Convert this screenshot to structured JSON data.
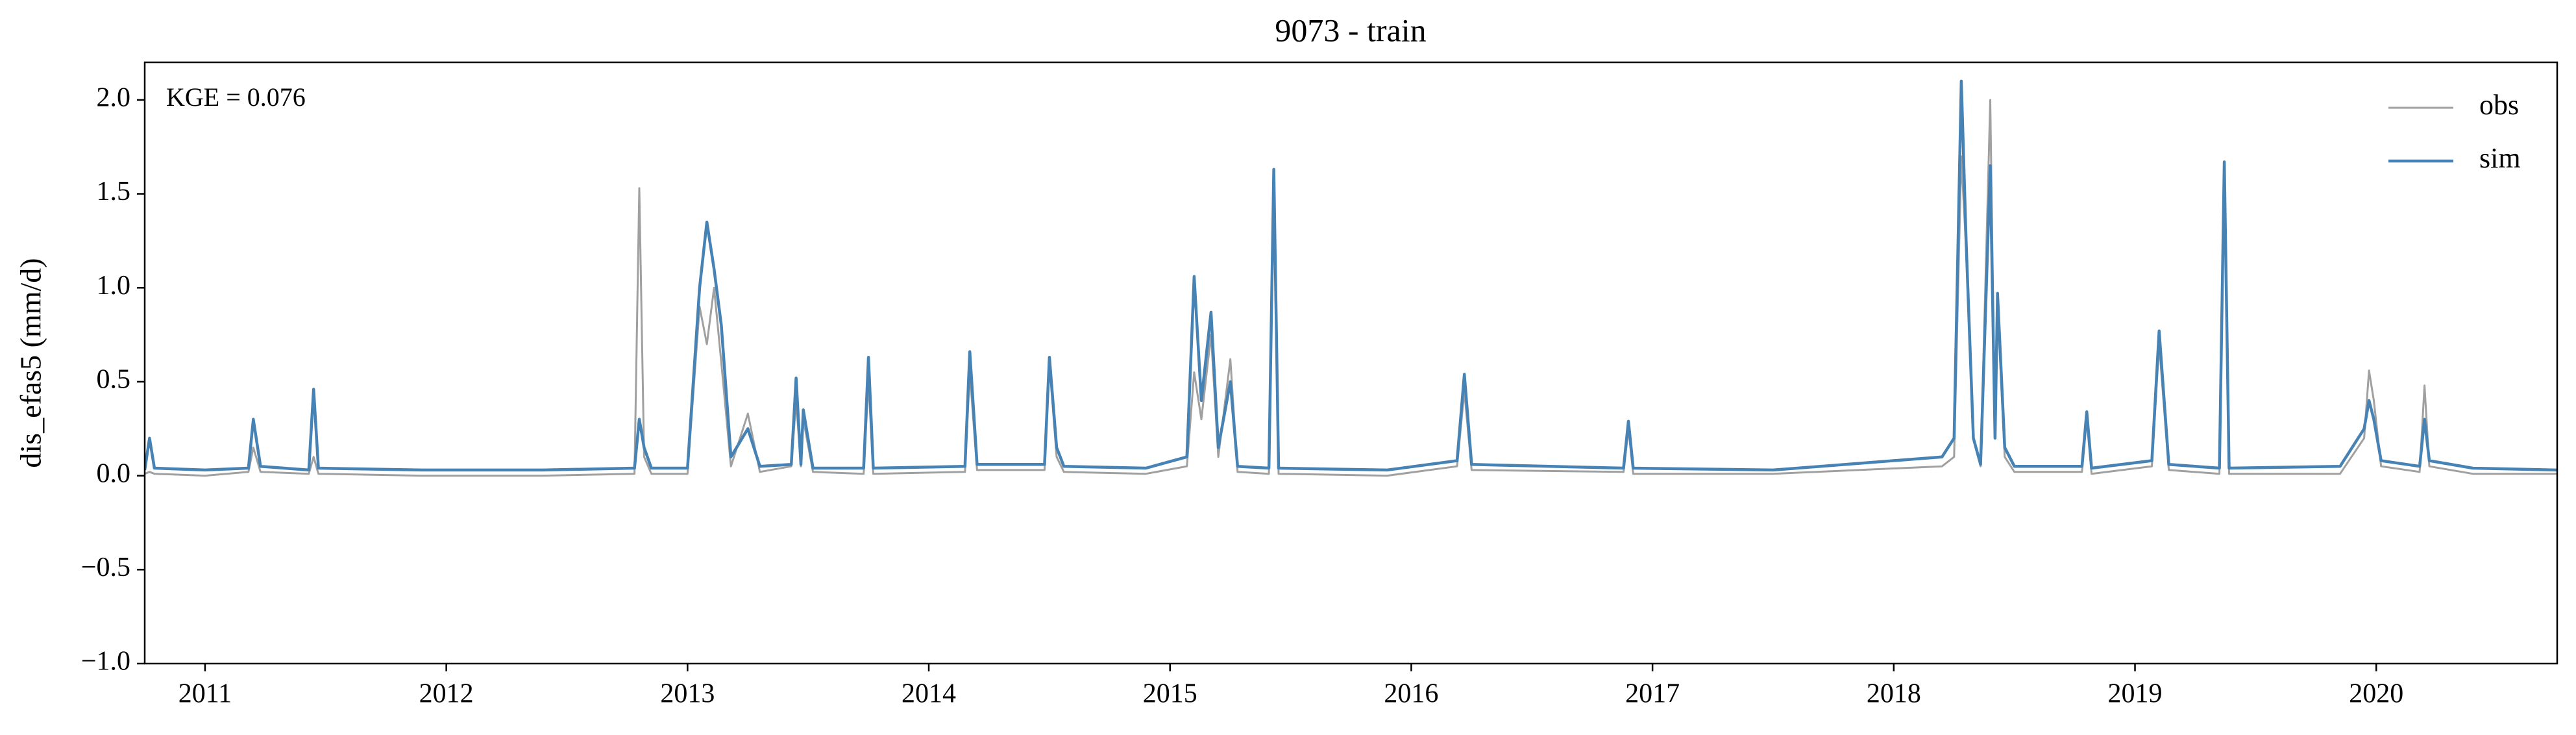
{
  "chart_data": {
    "type": "line",
    "title": "9073 - train",
    "ylabel": "dis_efas5 (mm/d)",
    "annotation": "KGE = 0.076",
    "legend": "upper right",
    "grid": false,
    "xlim": [
      2010.75,
      2020.75
    ],
    "xticks": [
      2011,
      2012,
      2013,
      2014,
      2015,
      2016,
      2017,
      2018,
      2019,
      2020
    ],
    "ylim": [
      -1,
      2.2
    ],
    "yticks": [
      {
        "value": -1,
        "label": "−1.0"
      },
      {
        "value": -0.5,
        "label": "−0.5"
      },
      {
        "value": 0,
        "label": "0.0"
      },
      0.5,
      {
        "value": 1,
        "label": "1.0"
      },
      1.5,
      {
        "value": 2,
        "label": "2.0"
      }
    ],
    "x": [
      2010.75,
      2010.77,
      2010.79,
      2011.0,
      2011.18,
      2011.2,
      2011.23,
      2011.43,
      2011.45,
      2011.47,
      2011.9,
      2012.4,
      2012.78,
      2012.8,
      2012.82,
      2012.85,
      2013.0,
      2013.05,
      2013.08,
      2013.11,
      2013.14,
      2013.18,
      2013.25,
      2013.3,
      2013.43,
      2013.45,
      2013.47,
      2013.48,
      2013.52,
      2013.73,
      2013.75,
      2013.77,
      2014.15,
      2014.17,
      2014.2,
      2014.48,
      2014.5,
      2014.53,
      2014.56,
      2014.9,
      2015.07,
      2015.1,
      2015.13,
      2015.17,
      2015.2,
      2015.25,
      2015.28,
      2015.41,
      2015.43,
      2015.45,
      2015.9,
      2016.19,
      2016.22,
      2016.25,
      2016.88,
      2016.9,
      2016.92,
      2017.5,
      2018.2,
      2018.25,
      2018.28,
      2018.3,
      2018.33,
      2018.36,
      2018.4,
      2018.42,
      2018.43,
      2018.46,
      2018.5,
      2018.78,
      2018.8,
      2018.82,
      2019.07,
      2019.1,
      2019.14,
      2019.35,
      2019.37,
      2019.39,
      2019.85,
      2019.95,
      2019.97,
      2019.99,
      2020.02,
      2020.18,
      2020.2,
      2020.22,
      2020.4,
      2020.75
    ],
    "series": [
      {
        "name": "obs",
        "color": "#a0a0a0",
        "values": [
          0.01,
          0.02,
          0.01,
          0.0,
          0.02,
          0.15,
          0.02,
          0.01,
          0.1,
          0.01,
          0.0,
          0.0,
          0.01,
          1.53,
          0.1,
          0.01,
          0.01,
          0.9,
          0.7,
          1.0,
          0.6,
          0.05,
          0.33,
          0.02,
          0.05,
          0.4,
          0.05,
          0.3,
          0.02,
          0.01,
          0.5,
          0.01,
          0.02,
          0.55,
          0.03,
          0.03,
          0.6,
          0.1,
          0.02,
          0.01,
          0.05,
          0.55,
          0.3,
          0.75,
          0.1,
          0.62,
          0.02,
          0.01,
          1.5,
          0.01,
          0.0,
          0.05,
          0.45,
          0.03,
          0.02,
          0.25,
          0.01,
          0.01,
          0.05,
          0.1,
          1.7,
          1.2,
          0.2,
          0.05,
          2.0,
          0.2,
          0.9,
          0.1,
          0.02,
          0.02,
          0.3,
          0.01,
          0.05,
          0.7,
          0.03,
          0.01,
          1.55,
          0.01,
          0.01,
          0.2,
          0.56,
          0.4,
          0.05,
          0.02,
          0.48,
          0.05,
          0.01,
          0.01
        ]
      },
      {
        "name": "sim",
        "color": "#4682b4",
        "values": [
          0.03,
          0.2,
          0.04,
          0.03,
          0.04,
          0.3,
          0.05,
          0.03,
          0.46,
          0.04,
          0.03,
          0.03,
          0.04,
          0.3,
          0.15,
          0.04,
          0.04,
          1.0,
          1.35,
          1.1,
          0.8,
          0.1,
          0.25,
          0.05,
          0.06,
          0.52,
          0.06,
          0.35,
          0.04,
          0.04,
          0.63,
          0.04,
          0.05,
          0.66,
          0.06,
          0.06,
          0.63,
          0.15,
          0.05,
          0.04,
          0.1,
          1.06,
          0.4,
          0.87,
          0.15,
          0.5,
          0.05,
          0.04,
          1.63,
          0.04,
          0.03,
          0.08,
          0.54,
          0.06,
          0.04,
          0.29,
          0.04,
          0.03,
          0.1,
          0.2,
          2.1,
          1.25,
          0.2,
          0.06,
          1.65,
          0.2,
          0.97,
          0.15,
          0.05,
          0.05,
          0.34,
          0.04,
          0.08,
          0.77,
          0.06,
          0.04,
          1.67,
          0.04,
          0.05,
          0.25,
          0.4,
          0.3,
          0.08,
          0.05,
          0.3,
          0.08,
          0.04,
          0.03
        ]
      }
    ]
  }
}
